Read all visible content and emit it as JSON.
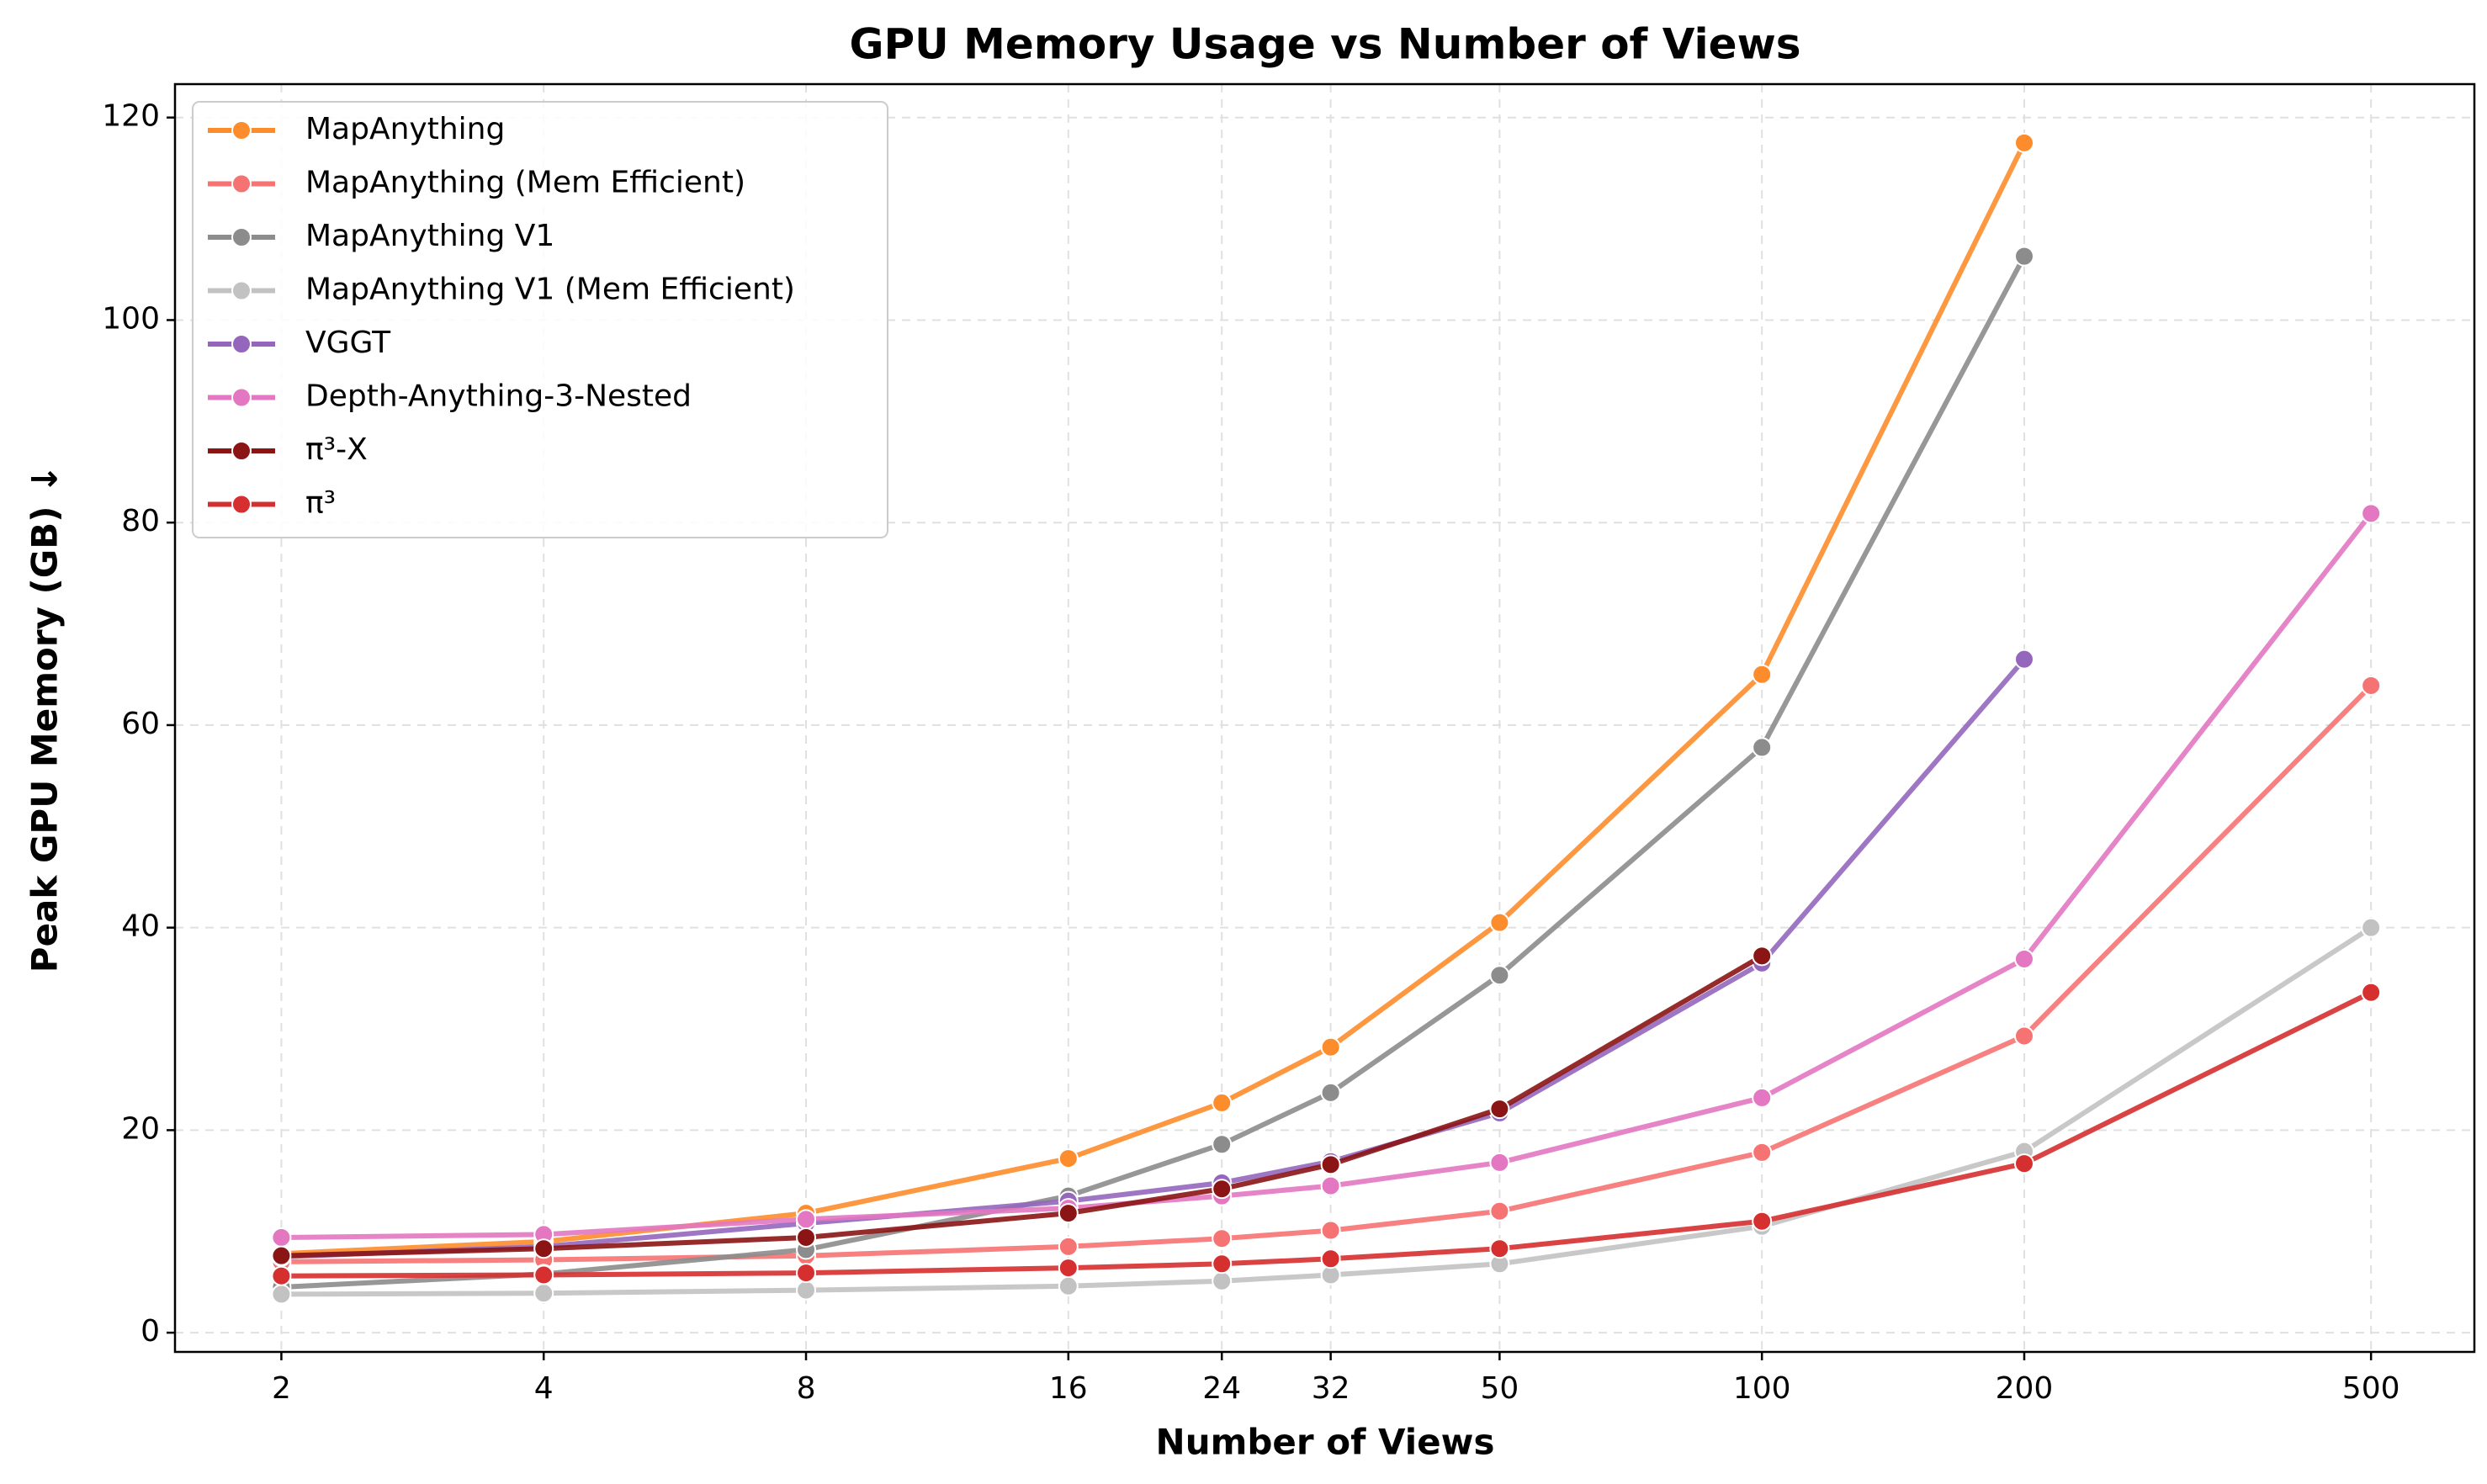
{
  "chart_data": {
    "type": "line",
    "title": "GPU Memory Usage vs Number of Views",
    "x_label": "Number of Views",
    "y_label": "Peak GPU Memory (GB)  ↓",
    "x": [
      2,
      4,
      8,
      16,
      24,
      32,
      50,
      100,
      200,
      500
    ],
    "x_scale": "log",
    "xlim": [
      1.51,
      657
    ],
    "ylim": [
      -1.9,
      123.3
    ],
    "xticks": [
      2,
      4,
      8,
      16,
      24,
      32,
      50,
      100,
      200,
      500
    ],
    "yticks": [
      0,
      20,
      40,
      60,
      80,
      100,
      120
    ],
    "grid": true,
    "legend": "upper left",
    "series": [
      {
        "name": "MapAnything",
        "color": "#fd8d2c",
        "values": [
          7.8,
          9.0,
          11.8,
          17.2,
          22.7,
          28.2,
          40.5,
          65.0,
          117.5,
          null
        ]
      },
      {
        "name": "MapAnything (Mem Efficient)",
        "color": "#f67373",
        "values": [
          7.0,
          7.2,
          7.6,
          8.5,
          9.3,
          10.1,
          12.0,
          17.8,
          29.3,
          63.9
        ]
      },
      {
        "name": "MapAnything V1",
        "color": "#8c8c8c",
        "values": [
          4.5,
          5.8,
          8.2,
          13.5,
          18.6,
          23.7,
          35.3,
          57.8,
          106.3,
          null
        ]
      },
      {
        "name": "MapAnything V1 (Mem Efficient)",
        "color": "#c2c2c2",
        "values": [
          3.8,
          3.9,
          4.2,
          4.6,
          5.1,
          5.7,
          6.8,
          10.5,
          17.9,
          40.0
        ]
      },
      {
        "name": "VGGT",
        "color": "#9467bd",
        "values": [
          7.5,
          8.5,
          10.8,
          13.0,
          14.8,
          16.9,
          21.7,
          36.5,
          66.5,
          null
        ]
      },
      {
        "name": "Depth-Anything-3-Nested",
        "color": "#e377c2",
        "values": [
          9.4,
          9.7,
          11.2,
          12.3,
          13.5,
          14.5,
          16.8,
          23.2,
          36.9,
          80.9
        ]
      },
      {
        "name": "π³-X",
        "color": "#8b1414",
        "values": [
          7.6,
          8.3,
          9.4,
          11.8,
          14.2,
          16.6,
          22.1,
          37.2,
          null,
          null
        ]
      },
      {
        "name": "π³",
        "color": "#d62f30",
        "values": [
          5.6,
          5.7,
          5.9,
          6.4,
          6.8,
          7.3,
          8.3,
          11.0,
          16.7,
          33.6
        ]
      }
    ]
  }
}
